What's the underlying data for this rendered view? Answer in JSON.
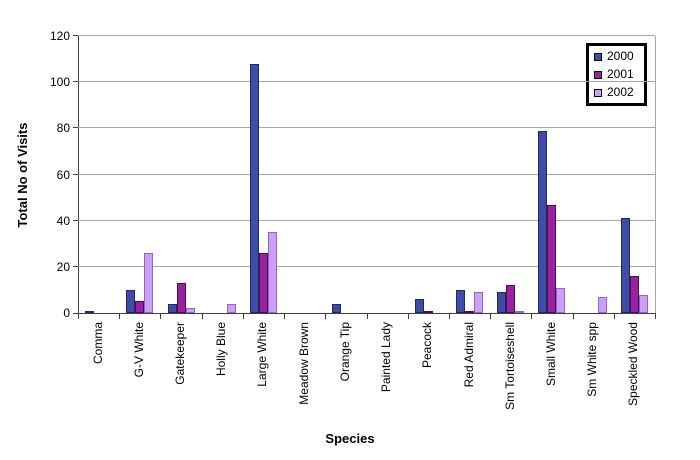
{
  "chart_data": {
    "type": "bar",
    "title": "",
    "xlabel": "Species",
    "ylabel": "Total No of Visits",
    "ylim": [
      0,
      120
    ],
    "ytick_step": 20,
    "yticks": [
      0,
      20,
      40,
      60,
      80,
      100,
      120
    ],
    "grid": true,
    "legend_position": "top-right",
    "categories": [
      "Comma",
      "G-V White",
      "Gatekeeper",
      "Holly Blue",
      "Large White",
      "Meadow Brown",
      "Orange Tip",
      "Painted Lady",
      "Peacock",
      "Red Admiral",
      "Sm Tortoiseshell",
      "Small White",
      "Sm White spp",
      "Speckled Wood"
    ],
    "series": [
      {
        "name": "2000",
        "color": "#3f4ba8",
        "border_color": "#23295f",
        "values": [
          1,
          10,
          4,
          0,
          108,
          0,
          4,
          0,
          6,
          10,
          9,
          79,
          0,
          41
        ]
      },
      {
        "name": "2001",
        "color": "#9a21a0",
        "border_color": "#4a0d52",
        "values": [
          0,
          5,
          13,
          0,
          26,
          0,
          0,
          0,
          1,
          1,
          12,
          47,
          0,
          16
        ]
      },
      {
        "name": "2002",
        "color": "#cda0f7",
        "border_color": "#8c66cc",
        "values": [
          0,
          26,
          2,
          4,
          35,
          0,
          0,
          0,
          0,
          9,
          1,
          11,
          7,
          8
        ]
      }
    ]
  },
  "colors": {
    "background": "#ffffff",
    "gridline": "#a6a6a6",
    "axis": "#404040",
    "legend_border": "#000000",
    "text": "#000000"
  }
}
